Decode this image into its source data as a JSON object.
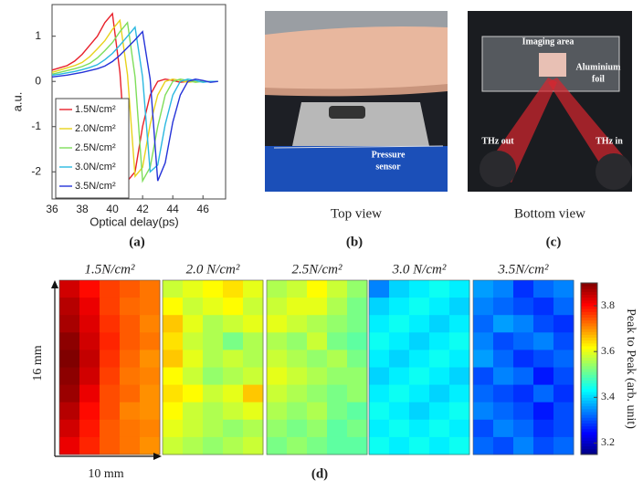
{
  "chart_data": [
    {
      "type": "line",
      "label": "(a)",
      "ylabel": "a.u.",
      "xlabel": "Optical delay(ps)",
      "x": [
        36,
        36.5,
        37,
        37.5,
        38,
        38.5,
        39,
        39.5,
        40,
        40.5,
        41,
        41.5,
        42,
        42.5,
        43,
        43.5,
        44,
        44.5,
        45,
        45.5,
        46,
        46.5,
        47
      ],
      "series": [
        {
          "name": "1.5N/cm²",
          "color": "#e8202a",
          "values": [
            0.25,
            0.3,
            0.35,
            0.45,
            0.6,
            0.8,
            1.0,
            1.3,
            1.5,
            0.2,
            -2.2,
            -2.0,
            -1.0,
            -0.3,
            0.0,
            0.05,
            0.02,
            -0.02,
            0,
            0,
            0,
            0,
            0
          ]
        },
        {
          "name": "2.0N/cm²",
          "color": "#e8d21c",
          "values": [
            0.2,
            0.25,
            0.3,
            0.35,
            0.42,
            0.55,
            0.72,
            0.9,
            1.15,
            1.35,
            0.15,
            -2.1,
            -1.9,
            -0.95,
            -0.3,
            0.0,
            0.05,
            0.02,
            -0.02,
            0,
            0,
            0,
            0
          ]
        },
        {
          "name": "2.5N/cm²",
          "color": "#7ede5a",
          "values": [
            0.16,
            0.2,
            0.24,
            0.28,
            0.33,
            0.4,
            0.52,
            0.68,
            0.86,
            1.1,
            1.3,
            0.1,
            -2.2,
            -1.9,
            -1.0,
            -0.3,
            0.0,
            0.05,
            0.02,
            -0.02,
            0,
            0,
            0
          ]
        },
        {
          "name": "3.0N/cm²",
          "color": "#2ab8e0",
          "values": [
            0.14,
            0.16,
            0.19,
            0.22,
            0.26,
            0.31,
            0.37,
            0.48,
            0.62,
            0.8,
            1.0,
            1.2,
            0.1,
            -2.0,
            -1.85,
            -0.95,
            -0.3,
            0.0,
            0.05,
            0.02,
            -0.02,
            0,
            0
          ]
        },
        {
          "name": "3.5N/cm²",
          "color": "#2432d8",
          "values": [
            0.1,
            0.12,
            0.14,
            0.17,
            0.2,
            0.24,
            0.28,
            0.34,
            0.44,
            0.58,
            0.75,
            0.92,
            1.1,
            0.05,
            -2.2,
            -1.8,
            -0.9,
            -0.3,
            0.0,
            0.05,
            0.02,
            -0.02,
            0
          ]
        }
      ],
      "xlim": [
        36,
        47.5
      ],
      "ylim": [
        -2.6,
        1.7
      ],
      "xticks": [
        36,
        38,
        40,
        42,
        44,
        46
      ],
      "yticks": [
        -2,
        -1,
        0,
        1
      ],
      "legend": "lower-left"
    },
    {
      "type": "heatmap",
      "label": "(d)",
      "colormap": "jet",
      "y_scale_label": "16 mm",
      "x_scale_label": "10 mm",
      "maps": [
        {
          "title": "1.5N/cm²",
          "values": [
            [
              3.84,
              3.8,
              3.76,
              3.74,
              3.72
            ],
            [
              3.86,
              3.82,
              3.76,
              3.73,
              3.72
            ],
            [
              3.87,
              3.83,
              3.77,
              3.74,
              3.71
            ],
            [
              3.89,
              3.84,
              3.78,
              3.74,
              3.72
            ],
            [
              3.9,
              3.85,
              3.77,
              3.73,
              3.7
            ],
            [
              3.89,
              3.84,
              3.76,
              3.72,
              3.71
            ],
            [
              3.88,
              3.82,
              3.75,
              3.73,
              3.7
            ],
            [
              3.86,
              3.8,
              3.75,
              3.71,
              3.7
            ],
            [
              3.84,
              3.79,
              3.74,
              3.72,
              3.71
            ],
            [
              3.82,
              3.78,
              3.74,
              3.72,
              3.7
            ]
          ]
        },
        {
          "title": "2.0 N/cm²",
          "values": [
            [
              3.58,
              3.6,
              3.62,
              3.64,
              3.6
            ],
            [
              3.62,
              3.58,
              3.6,
              3.62,
              3.58
            ],
            [
              3.66,
              3.6,
              3.56,
              3.58,
              3.6
            ],
            [
              3.64,
              3.58,
              3.56,
              3.52,
              3.56
            ],
            [
              3.66,
              3.6,
              3.56,
              3.58,
              3.56
            ],
            [
              3.62,
              3.58,
              3.54,
              3.56,
              3.58
            ],
            [
              3.64,
              3.62,
              3.58,
              3.6,
              3.66
            ],
            [
              3.62,
              3.58,
              3.56,
              3.58,
              3.6
            ],
            [
              3.6,
              3.58,
              3.56,
              3.54,
              3.56
            ],
            [
              3.58,
              3.56,
              3.54,
              3.56,
              3.58
            ]
          ]
        },
        {
          "title": "2.5N/cm²",
          "values": [
            [
              3.56,
              3.58,
              3.62,
              3.58,
              3.54
            ],
            [
              3.58,
              3.6,
              3.6,
              3.56,
              3.52
            ],
            [
              3.6,
              3.58,
              3.56,
              3.54,
              3.52
            ],
            [
              3.56,
              3.54,
              3.58,
              3.52,
              3.5
            ],
            [
              3.58,
              3.56,
              3.54,
              3.56,
              3.52
            ],
            [
              3.6,
              3.58,
              3.56,
              3.54,
              3.54
            ],
            [
              3.58,
              3.56,
              3.54,
              3.52,
              3.54
            ],
            [
              3.56,
              3.54,
              3.56,
              3.52,
              3.5
            ],
            [
              3.54,
              3.52,
              3.54,
              3.5,
              3.52
            ],
            [
              3.52,
              3.54,
              3.52,
              3.5,
              3.5
            ]
          ]
        },
        {
          "title": "3.0 N/cm²",
          "values": [
            [
              3.34,
              3.4,
              3.42,
              3.44,
              3.42
            ],
            [
              3.4,
              3.42,
              3.44,
              3.42,
              3.4
            ],
            [
              3.42,
              3.44,
              3.42,
              3.4,
              3.42
            ],
            [
              3.44,
              3.42,
              3.4,
              3.42,
              3.44
            ],
            [
              3.42,
              3.4,
              3.42,
              3.44,
              3.42
            ],
            [
              3.4,
              3.42,
              3.44,
              3.42,
              3.4
            ],
            [
              3.42,
              3.44,
              3.42,
              3.4,
              3.42
            ],
            [
              3.44,
              3.42,
              3.4,
              3.42,
              3.44
            ],
            [
              3.42,
              3.44,
              3.42,
              3.44,
              3.42
            ],
            [
              3.44,
              3.42,
              3.44,
              3.42,
              3.44
            ]
          ]
        },
        {
          "title": "3.5N/cm²",
          "values": [
            [
              3.36,
              3.34,
              3.28,
              3.32,
              3.34
            ],
            [
              3.34,
              3.32,
              3.3,
              3.28,
              3.32
            ],
            [
              3.32,
              3.36,
              3.34,
              3.3,
              3.28
            ],
            [
              3.34,
              3.3,
              3.32,
              3.34,
              3.3
            ],
            [
              3.36,
              3.32,
              3.28,
              3.3,
              3.32
            ],
            [
              3.3,
              3.34,
              3.32,
              3.26,
              3.3
            ],
            [
              3.32,
              3.3,
              3.28,
              3.32,
              3.28
            ],
            [
              3.34,
              3.32,
              3.3,
              3.26,
              3.3
            ],
            [
              3.3,
              3.34,
              3.32,
              3.28,
              3.3
            ],
            [
              3.32,
              3.3,
              3.34,
              3.3,
              3.32
            ]
          ]
        }
      ],
      "colorbar_label": "Peak to Peak (arb. unit)",
      "clim": [
        3.15,
        3.9
      ],
      "cticks": [
        3.2,
        3.4,
        3.6,
        3.8
      ]
    }
  ],
  "photos": [
    {
      "caption": "Top view",
      "label": "(b)",
      "annotations": [
        "Pressure",
        "sensor"
      ]
    },
    {
      "caption": "Bottom view",
      "label": "(c)",
      "annotations": [
        "Imaging area",
        "Aluminium",
        "foil",
        "THz out",
        "THz in"
      ]
    }
  ]
}
